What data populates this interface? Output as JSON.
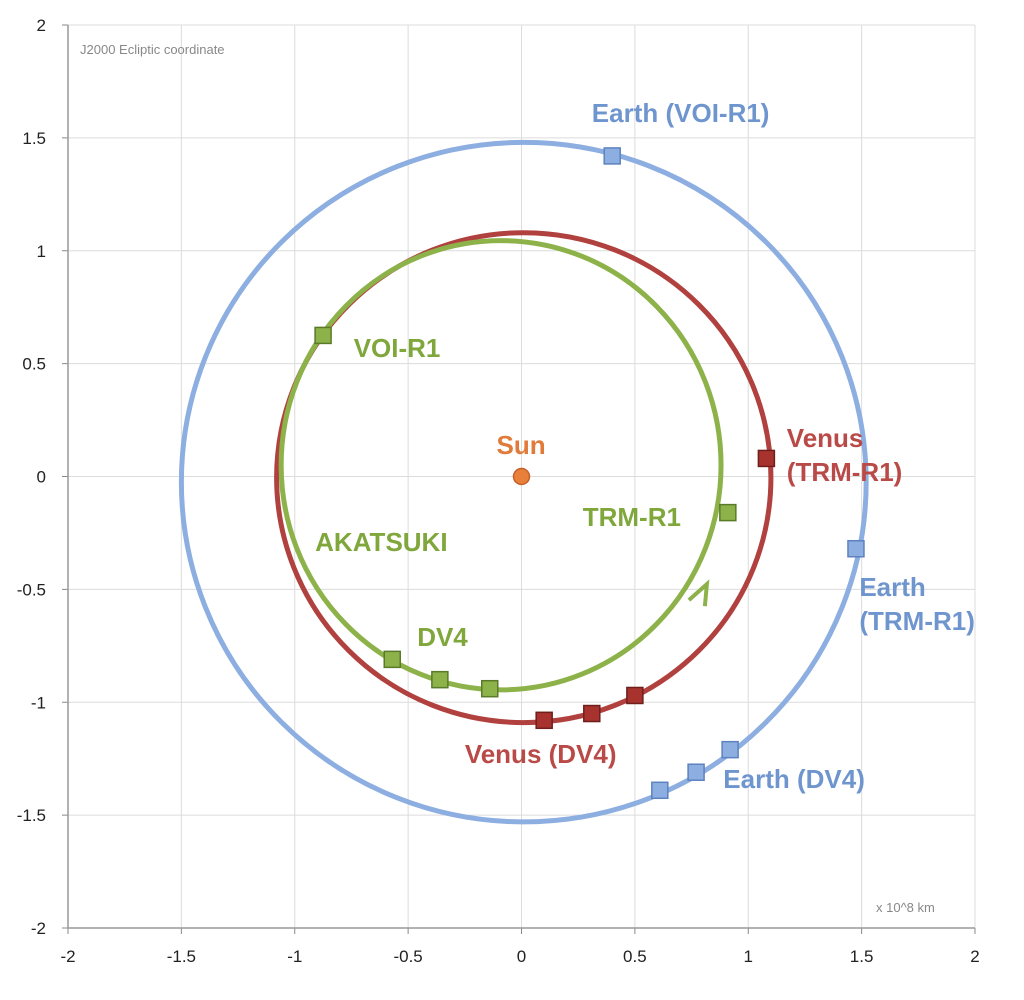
{
  "chart_data": {
    "type": "scatter",
    "title": "",
    "note": "J2000 Ecliptic coordinate",
    "unit_label": "x 10^8 km",
    "xlim": [
      -2,
      2
    ],
    "ylim": [
      -2,
      2
    ],
    "xticks": [
      "-2",
      "-1.5",
      "-1",
      "-0.5",
      "0",
      "0.5",
      "1",
      "1.5",
      "2"
    ],
    "yticks": [
      "2",
      "1.5",
      "1",
      "0.5",
      "0",
      "-0.5",
      "-1",
      "-1.5",
      "-2"
    ],
    "grid": true,
    "orbits": [
      {
        "name": "Earth",
        "color": "#8daee0",
        "center": [
          0.01,
          -0.025
        ],
        "radii": [
          1.51,
          1.505
        ]
      },
      {
        "name": "Venus",
        "color": "#b0413e",
        "center": [
          0.01,
          -0.005
        ],
        "radii": [
          1.09,
          1.085
        ]
      },
      {
        "name": "AKATSUKI",
        "color": "#8db24a",
        "center": [
          -0.09,
          0.05
        ],
        "radii": [
          0.97,
          0.995
        ]
      }
    ],
    "sun": {
      "label": "Sun",
      "x": 0,
      "y": 0,
      "color": "#e8803a"
    },
    "markers": [
      {
        "body": "Earth",
        "color": "#8daee0",
        "stroke": "#5d82c0",
        "points": [
          [
            0.4,
            1.42
          ],
          [
            1.475,
            -0.32
          ],
          [
            0.92,
            -1.21
          ],
          [
            0.77,
            -1.31
          ],
          [
            0.61,
            -1.39
          ]
        ]
      },
      {
        "body": "Venus",
        "color": "#a8322e",
        "stroke": "#6e1f1c",
        "points": [
          [
            1.08,
            0.08
          ],
          [
            0.1,
            -1.08
          ],
          [
            0.31,
            -1.05
          ],
          [
            0.5,
            -0.97
          ]
        ]
      },
      {
        "body": "AKATSUKI",
        "color": "#8db24a",
        "stroke": "#5a7a2a",
        "points": [
          [
            -0.875,
            0.625
          ],
          [
            0.91,
            -0.16
          ],
          [
            -0.57,
            -0.81
          ],
          [
            -0.36,
            -0.9
          ],
          [
            -0.14,
            -0.94
          ]
        ]
      }
    ],
    "direction_arrow": {
      "at": [
        0.8,
        -0.53
      ],
      "color": "#8db24a"
    },
    "annotations": [
      {
        "text": "Earth (VOI-R1)",
        "color": "#6f95cf",
        "lines": [
          "Earth (VOI-R1)"
        ],
        "x": 0.31,
        "y": 1.57
      },
      {
        "text": "Earth (TRM-R1)",
        "color": "#6f95cf",
        "lines": [
          "Earth",
          "(TRM-R1)"
        ],
        "x": 1.49,
        "y": -0.53
      },
      {
        "text": "Earth (DV4)",
        "color": "#6f95cf",
        "lines": [
          "Earth (DV4)"
        ],
        "x": 0.89,
        "y": -1.38
      },
      {
        "text": "Venus (TRM-R1)",
        "color": "#b94a48",
        "lines": [
          "Venus",
          "(TRM-R1)"
        ],
        "x": 1.17,
        "y": 0.13
      },
      {
        "text": "Venus (DV4)",
        "color": "#b94a48",
        "lines": [
          "Venus (DV4)"
        ],
        "x": -0.25,
        "y": -1.27
      },
      {
        "text": "VOI-R1",
        "color": "#7fa73c",
        "lines": [
          "VOI-R1"
        ],
        "x": -0.74,
        "y": 0.53
      },
      {
        "text": "TRM-R1",
        "color": "#7fa73c",
        "lines": [
          "TRM-R1"
        ],
        "x": 0.27,
        "y": -0.22
      },
      {
        "text": "AKATSUKI",
        "color": "#7fa73c",
        "lines": [
          "AKATSUKI"
        ],
        "x": -0.91,
        "y": -0.33
      },
      {
        "text": "DV4",
        "color": "#7fa73c",
        "lines": [
          "DV4"
        ],
        "x": -0.46,
        "y": -0.75
      },
      {
        "text": "Sun",
        "color": "#e07b39",
        "lines": [
          "Sun"
        ],
        "x": -0.11,
        "y": 0.1
      }
    ]
  }
}
